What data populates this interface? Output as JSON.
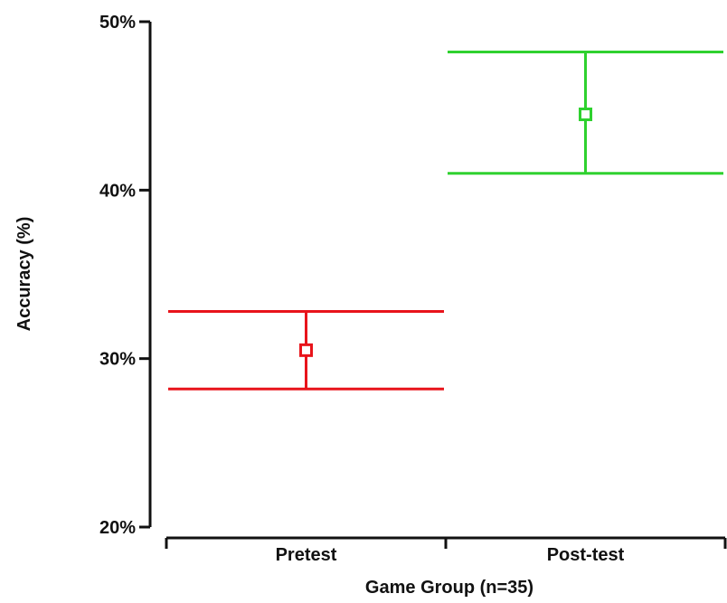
{
  "chart_data": {
    "type": "scatter",
    "xlabel": "Game Group (n=35)",
    "ylabel": "Accuracy (%)",
    "ylim": [
      20,
      50
    ],
    "yticks": [
      20,
      30,
      40,
      50
    ],
    "ytick_labels": [
      "20%",
      "30%",
      "40%",
      "50%"
    ],
    "categories": [
      "Pretest",
      "Post-test"
    ],
    "points": [
      {
        "category": "Pretest",
        "mean": 30.5,
        "lower": 28.2,
        "upper": 32.8,
        "color": "#e8141b"
      },
      {
        "category": "Post-test",
        "mean": 44.5,
        "lower": 41.0,
        "upper": 48.2,
        "color": "#2fd12f"
      }
    ],
    "grid": false,
    "legend": "none"
  }
}
